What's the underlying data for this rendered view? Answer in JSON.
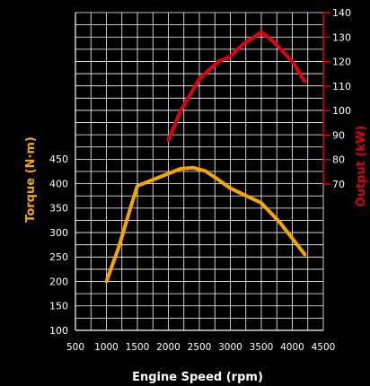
{
  "chart_data": {
    "type": "line",
    "xlabel": "Engine Speed (rpm)",
    "ylabel_left": "Torque (N·m)",
    "ylabel_right": "Output (kW)",
    "xlim": [
      500,
      4500
    ],
    "xticks": [
      500,
      1000,
      1500,
      2000,
      2500,
      3000,
      3500,
      4000,
      4500
    ],
    "ylim_left": [
      100,
      450
    ],
    "yticks_left": [
      100,
      150,
      200,
      250,
      300,
      350,
      400,
      450
    ],
    "ylim_right": [
      70,
      140
    ],
    "yticks_right": [
      70,
      80,
      90,
      100,
      110,
      120,
      130,
      140
    ],
    "grid": true,
    "series": [
      {
        "axis": "left",
        "color": "#f7a600",
        "x": [
          1000,
          1200,
          1400,
          1500,
          1700,
          2000,
          2200,
          2400,
          2600,
          2800,
          3000,
          3200,
          3500,
          3800,
          4200
        ],
        "y": [
          200,
          270,
          355,
          395,
          405,
          420,
          430,
          432,
          425,
          408,
          390,
          378,
          360,
          320,
          255
        ]
      },
      {
        "axis": "right",
        "color": "#e10010",
        "x": [
          2000,
          2200,
          2500,
          2800,
          3000,
          3200,
          3500,
          3700,
          4000,
          4200
        ],
        "y": [
          88,
          100,
          113,
          120,
          122,
          127,
          132,
          128,
          120,
          112
        ]
      }
    ]
  }
}
